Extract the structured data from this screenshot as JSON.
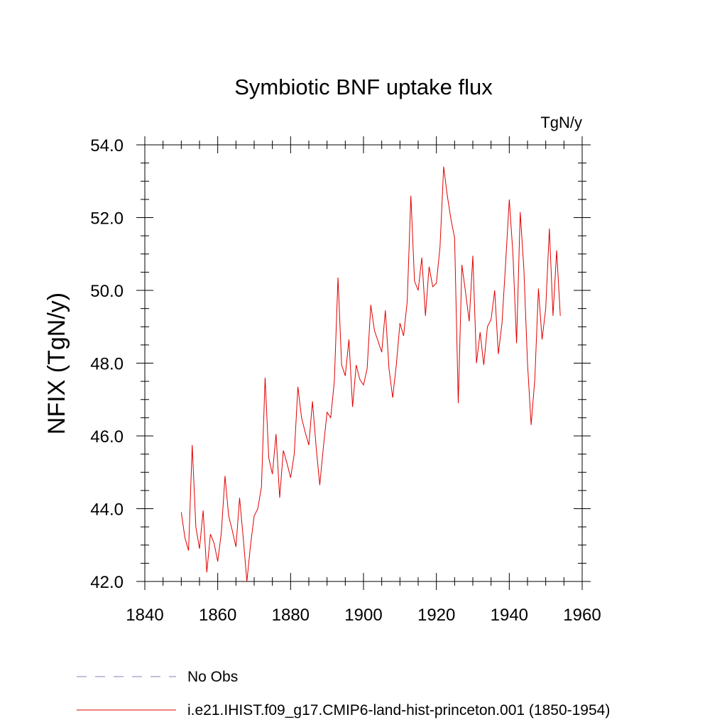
{
  "chart_data": {
    "type": "line",
    "title": "Symbiotic BNF uptake flux",
    "units_label": "TgN/y",
    "xlabel": "",
    "ylabel": "NFIX  (TgN/y)",
    "xlim": [
      1840,
      1960
    ],
    "ylim": [
      42.0,
      54.0
    ],
    "x_major_ticks": [
      1840,
      1860,
      1880,
      1900,
      1920,
      1940,
      1960
    ],
    "x_tick_labels": [
      "1840",
      "1860",
      "1880",
      "1900",
      "1920",
      "1940",
      "1960"
    ],
    "y_major_ticks": [
      42,
      44,
      46,
      48,
      50,
      52,
      54
    ],
    "y_tick_labels": [
      "42.0",
      "44.0",
      "46.0",
      "48.0",
      "50.0",
      "52.0",
      "54.0"
    ],
    "grid": false,
    "legend_position": "bottom",
    "series": [
      {
        "name": "No Obs",
        "color": "#8a7fb8",
        "style": "dashed",
        "x": [],
        "y": []
      },
      {
        "name": "i.e21.IHIST.f09_g17.CMIP6-land-hist-princeton.001 (1850-1954)",
        "color": "#e00000",
        "style": "solid",
        "x": [
          1850,
          1851,
          1852,
          1853,
          1854,
          1855,
          1856,
          1857,
          1858,
          1859,
          1860,
          1861,
          1862,
          1863,
          1864,
          1865,
          1866,
          1867,
          1868,
          1869,
          1870,
          1871,
          1872,
          1873,
          1874,
          1875,
          1876,
          1877,
          1878,
          1879,
          1880,
          1881,
          1882,
          1883,
          1884,
          1885,
          1886,
          1887,
          1888,
          1889,
          1890,
          1891,
          1892,
          1893,
          1894,
          1895,
          1896,
          1897,
          1898,
          1899,
          1900,
          1901,
          1902,
          1903,
          1904,
          1905,
          1906,
          1907,
          1908,
          1909,
          1910,
          1911,
          1912,
          1913,
          1914,
          1915,
          1916,
          1917,
          1918,
          1919,
          1920,
          1921,
          1922,
          1923,
          1924,
          1925,
          1926,
          1927,
          1928,
          1929,
          1930,
          1931,
          1932,
          1933,
          1934,
          1935,
          1936,
          1937,
          1938,
          1939,
          1940,
          1941,
          1942,
          1943,
          1944,
          1945,
          1946,
          1947,
          1948,
          1949,
          1950,
          1951,
          1952,
          1953,
          1954
        ],
        "y": [
          43.9,
          43.2,
          42.85,
          45.75,
          43.5,
          42.9,
          43.95,
          42.25,
          43.3,
          43.05,
          42.55,
          43.35,
          44.9,
          43.8,
          43.4,
          42.95,
          44.3,
          43.2,
          42.0,
          43.0,
          43.8,
          44.0,
          44.6,
          47.6,
          45.4,
          44.95,
          46.05,
          44.3,
          45.6,
          45.25,
          44.85,
          45.5,
          47.35,
          46.5,
          46.1,
          45.75,
          46.95,
          45.7,
          44.65,
          45.7,
          46.65,
          46.5,
          47.5,
          50.35,
          47.95,
          47.65,
          48.65,
          46.8,
          47.95,
          47.55,
          47.4,
          47.85,
          49.6,
          48.9,
          48.6,
          48.3,
          49.45,
          47.85,
          47.05,
          47.95,
          49.1,
          48.75,
          49.7,
          52.6,
          50.25,
          50.0,
          50.9,
          49.3,
          50.65,
          50.1,
          50.2,
          51.2,
          53.4,
          52.6,
          51.95,
          51.45,
          46.9,
          50.7,
          49.95,
          49.15,
          50.95,
          48.0,
          48.85,
          47.95,
          49.0,
          49.2,
          50.0,
          48.25,
          49.1,
          50.75,
          52.5,
          51.0,
          48.55,
          52.15,
          50.6,
          48.0,
          46.3,
          47.55,
          50.05,
          48.65,
          49.5,
          51.7,
          49.3,
          51.1,
          49.3
        ]
      }
    ]
  }
}
